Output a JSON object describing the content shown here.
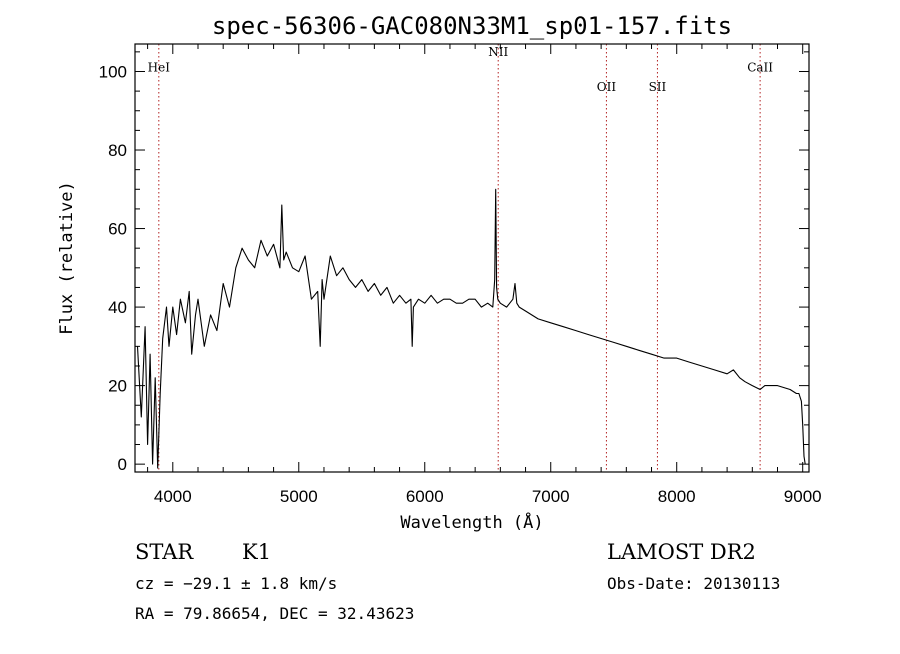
{
  "chart_data": {
    "type": "line",
    "title": "spec-56306-GAC080N33M1_sp01-157.fits",
    "xlabel": "Wavelength (Å)",
    "ylabel": "Flux (relative)",
    "xlim": [
      3700,
      9050
    ],
    "ylim": [
      -2,
      107
    ],
    "xticks": [
      4000,
      5000,
      6000,
      7000,
      8000,
      9000
    ],
    "yticks": [
      0,
      20,
      40,
      60,
      80,
      100
    ],
    "grid": false,
    "series": [
      {
        "x": [
          3720,
          3750,
          3780,
          3800,
          3820,
          3840,
          3860,
          3880,
          3900,
          3920,
          3950,
          3970,
          4000,
          4030,
          4060,
          4100,
          4130,
          4150,
          4180,
          4200,
          4250,
          4300,
          4350,
          4400,
          4450,
          4500,
          4550,
          4600,
          4650,
          4700,
          4750,
          4800,
          4850,
          4865,
          4880,
          4900,
          4950,
          5000,
          5050,
          5100,
          5150,
          5170,
          5185,
          5200,
          5250,
          5300,
          5350,
          5400,
          5450,
          5500,
          5550,
          5600,
          5650,
          5700,
          5750,
          5800,
          5850,
          5890,
          5900,
          5910,
          5950,
          6000,
          6050,
          6100,
          6150,
          6200,
          6250,
          6300,
          6350,
          6400,
          6450,
          6500,
          6540,
          6555,
          6563,
          6570,
          6580,
          6600,
          6650,
          6700,
          6716,
          6731,
          6750,
          6800,
          6900,
          7000,
          7100,
          7200,
          7300,
          7400,
          7500,
          7600,
          7700,
          7800,
          7900,
          8000,
          8100,
          8200,
          8300,
          8400,
          8450,
          8500,
          8542,
          8600,
          8662,
          8700,
          8800,
          8900,
          8950,
          8970,
          8990,
          9000,
          9010,
          9020
        ],
        "values": [
          30,
          12,
          35,
          5,
          28,
          0,
          22,
          -1,
          18,
          32,
          40,
          30,
          40,
          33,
          42,
          36,
          44,
          28,
          38,
          42,
          30,
          38,
          34,
          46,
          40,
          50,
          55,
          52,
          50,
          57,
          53,
          56,
          50,
          66,
          52,
          54,
          50,
          49,
          53,
          42,
          44,
          30,
          47,
          42,
          53,
          48,
          50,
          47,
          45,
          47,
          44,
          46,
          43,
          45,
          41,
          43,
          41,
          42,
          30,
          40,
          42,
          41,
          43,
          41,
          42,
          42,
          41,
          41,
          42,
          42,
          40,
          41,
          40,
          47,
          70,
          45,
          42,
          41,
          40,
          42,
          46,
          41,
          40,
          39,
          37,
          36,
          35,
          34,
          33,
          32,
          31,
          30,
          29,
          28,
          27,
          27,
          26,
          25,
          24,
          23,
          24,
          22,
          21,
          20,
          19,
          20,
          20,
          19,
          18,
          18,
          16,
          10,
          2,
          0
        ]
      }
    ],
    "spectral_lines": [
      {
        "label": "HeI",
        "x": 3889,
        "label_y": 100
      },
      {
        "label": "NII",
        "x": 6583,
        "label_y": 104
      },
      {
        "label": "OII",
        "x": 7442,
        "label_y": 95
      },
      {
        "label": "SII",
        "x": 7847,
        "label_y": 95
      },
      {
        "label": "CaII",
        "x": 8662,
        "label_y": 100
      }
    ],
    "line_color": "#000000",
    "marker_color": "#b22222"
  },
  "info": {
    "object_class": "STAR",
    "subclass": "K1",
    "survey": "LAMOST DR2",
    "cz_text": "cz = −29.1 ± 1.8 km/s",
    "obs_date": "Obs-Date: 20130113",
    "coords": "RA =  79.86654, DEC =  32.43623"
  }
}
